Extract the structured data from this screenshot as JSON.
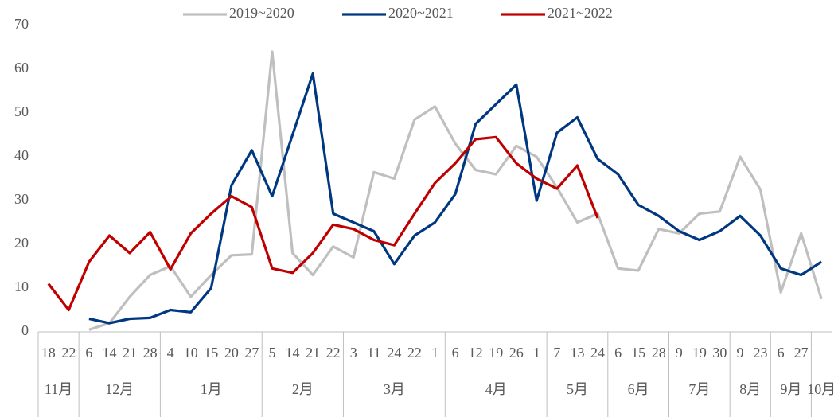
{
  "chart_data": {
    "type": "line",
    "categories": [
      "18",
      "22",
      "6",
      "14",
      "21",
      "28",
      "4",
      "10",
      "15",
      "20",
      "27",
      "5",
      "14",
      "21",
      "22",
      "3",
      "11",
      "24",
      "22",
      "1",
      "6",
      "12",
      "19",
      "26",
      "1",
      "7",
      "13",
      "24",
      "6",
      "15",
      "28",
      "9",
      "19",
      "30",
      "9",
      "23",
      "6",
      "27",
      null
    ],
    "months": [
      {
        "label": "11月",
        "count": 2
      },
      {
        "label": "12月",
        "count": 4
      },
      {
        "label": "1月",
        "count": 5
      },
      {
        "label": "2月",
        "count": 4
      },
      {
        "label": "3月",
        "count": 5
      },
      {
        "label": "4月",
        "count": 5
      },
      {
        "label": "5月",
        "count": 3
      },
      {
        "label": "6月",
        "count": 3
      },
      {
        "label": "7月",
        "count": 3
      },
      {
        "label": "8月",
        "count": 2
      },
      {
        "label": "9月",
        "count": 2
      },
      {
        "label": "10月",
        "count": 1
      }
    ],
    "series": [
      {
        "name": "2019~2020",
        "color": "#bfbfbf",
        "values": [
          null,
          null,
          0.5,
          2,
          8,
          13,
          15,
          8,
          13,
          17.5,
          17.7,
          64,
          18,
          13,
          19.5,
          17,
          36.5,
          35,
          48.5,
          51.5,
          43,
          37,
          36,
          42.5,
          40,
          33,
          25,
          27,
          14.5,
          14,
          23.5,
          22.5,
          27,
          27.5,
          40,
          32.5,
          9,
          22.5,
          7.5
        ]
      },
      {
        "name": "2020~2021",
        "color": "#003781",
        "values": [
          null,
          null,
          3,
          2,
          3,
          3.2,
          5,
          4.5,
          10,
          33.5,
          41.5,
          31,
          45,
          59,
          27,
          25,
          23,
          15.5,
          22,
          25,
          31.5,
          47.5,
          52,
          56.5,
          30,
          45.5,
          49,
          39.5,
          36,
          29,
          26.5,
          23,
          21,
          23,
          26.5,
          22,
          14.5,
          13,
          16
        ]
      },
      {
        "name": "2021~2022",
        "color": "#c00000",
        "values": [
          11,
          5,
          16,
          22,
          18,
          22.8,
          14.3,
          22.5,
          27,
          31,
          28.5,
          14.5,
          13.5,
          18,
          24.5,
          23.5,
          21,
          19.8,
          27,
          34,
          38.5,
          44,
          44.5,
          38.5,
          35,
          32.7,
          38,
          26,
          null,
          null,
          null,
          null,
          null,
          null,
          null,
          null,
          null,
          null,
          null
        ]
      }
    ],
    "ylim": [
      0,
      70
    ],
    "yticks": [
      0,
      10,
      20,
      30,
      40,
      50,
      60,
      70
    ],
    "grid": false
  }
}
